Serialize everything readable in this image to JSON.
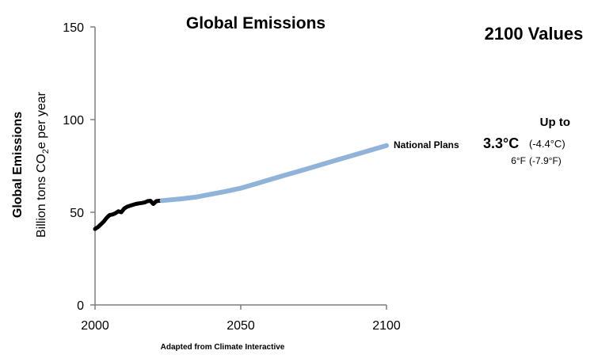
{
  "title": "Global Emissions",
  "side_title": "2100 Values",
  "footer": "Adapted from Climate Interactive",
  "y_title_main": "Global Emissions",
  "y_title_sub": {
    "prefix": "Billion tons CO",
    "subscript": "2",
    "suffix": "e per year"
  },
  "series_label": "National Plans",
  "up_to_label": "Up to",
  "temp_c": "3.3°C",
  "temp_c_change": "(-4.4°C)",
  "temp_f": "6°F",
  "temp_f_change": "(-7.9°F)",
  "colors": {
    "historical": "#000000",
    "projection": "#8fb3d9",
    "axis": "#7f7f7f"
  },
  "chart_data": {
    "type": "line",
    "title": "Global Emissions",
    "xlabel": "",
    "ylabel": "Global Emissions",
    "xlim": [
      2000,
      2100
    ],
    "ylim": [
      0,
      150
    ],
    "x_ticks": [
      "2000",
      "2050",
      "2100"
    ],
    "y_ticks": [
      "0",
      "50",
      "100",
      "150"
    ],
    "grid": false,
    "series": [
      {
        "color": "#000000",
        "points": [
          [
            2000,
            41
          ],
          [
            2001,
            42
          ],
          [
            2002,
            43.5
          ],
          [
            2003,
            45
          ],
          [
            2004,
            47
          ],
          [
            2005,
            48.5
          ],
          [
            2006,
            48.8
          ],
          [
            2007,
            49.5
          ],
          [
            2008,
            50.5
          ],
          [
            2009,
            50
          ],
          [
            2010,
            52
          ],
          [
            2011,
            53
          ],
          [
            2012,
            53.5
          ],
          [
            2013,
            54
          ],
          [
            2014,
            54.5
          ],
          [
            2015,
            54.8
          ],
          [
            2016,
            55
          ],
          [
            2017,
            55.3
          ],
          [
            2018,
            56
          ],
          [
            2019,
            56.2
          ],
          [
            2020,
            54.5
          ],
          [
            2021,
            56
          ],
          [
            2022,
            56.2
          ],
          [
            2023,
            56.3
          ]
        ]
      },
      {
        "name": "National Plans",
        "color": "#8fb3d9",
        "points": [
          [
            2023,
            56.3
          ],
          [
            2030,
            57.3
          ],
          [
            2035,
            58.3
          ],
          [
            2040,
            59.8
          ],
          [
            2045,
            61.3
          ],
          [
            2050,
            63
          ],
          [
            2055,
            65.3
          ],
          [
            2060,
            67.6
          ],
          [
            2065,
            69.9
          ],
          [
            2070,
            72.2
          ],
          [
            2075,
            74.5
          ],
          [
            2080,
            76.8
          ],
          [
            2085,
            79.1
          ],
          [
            2090,
            81.4
          ],
          [
            2095,
            83.7
          ],
          [
            2100,
            86
          ]
        ]
      }
    ]
  }
}
